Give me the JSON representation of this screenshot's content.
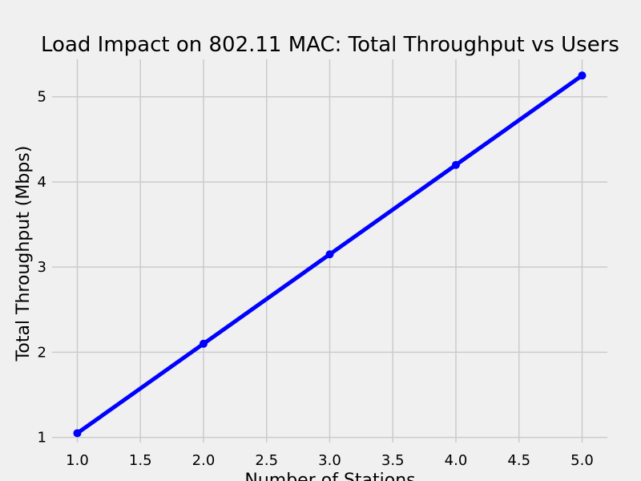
{
  "chart_data": {
    "type": "line",
    "title": "Load Impact on 802.11 MAC: Total Throughput vs Users",
    "xlabel": "Number of Stations",
    "ylabel": "Total Throughput (Mbps)",
    "x": [
      1.0,
      2.0,
      3.0,
      4.0,
      5.0
    ],
    "series": [
      {
        "values": [
          1.05,
          2.1,
          3.15,
          4.2,
          5.25
        ],
        "color": "#0000ff"
      }
    ],
    "xlim": [
      0.8,
      5.2
    ],
    "ylim": [
      0.94,
      5.44
    ],
    "xticks": [
      "1.0",
      "1.5",
      "2.0",
      "2.5",
      "3.0",
      "3.5",
      "4.0",
      "4.5",
      "5.0"
    ],
    "yticks": [
      "1",
      "2",
      "3",
      "4",
      "5"
    ],
    "grid": true,
    "legend": "none",
    "style": {
      "background": "#f0f0f0",
      "grid_color": "#cbcbcb",
      "text_color": "#000000"
    }
  }
}
